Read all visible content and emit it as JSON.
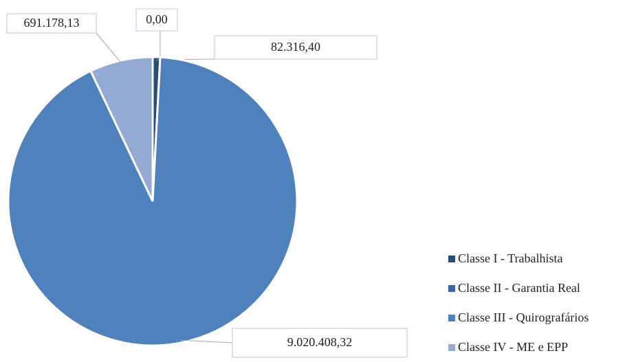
{
  "chart_data": {
    "type": "pie",
    "categories": [
      "Classe I - Trabalhista",
      "Classe II - Garantia Real",
      "Classe III - Quirografários",
      "Classe IV - ME e EPP"
    ],
    "values": [
      82316.4,
      0.0,
      9020408.32,
      691178.13
    ],
    "value_labels": [
      "82.316,40",
      "0,00",
      "9.020.408,32",
      "691.178,13"
    ],
    "colors": [
      "#2a4d78",
      "#3a66a8",
      "#4f81bd",
      "#94a9d3"
    ],
    "legend": "right"
  }
}
